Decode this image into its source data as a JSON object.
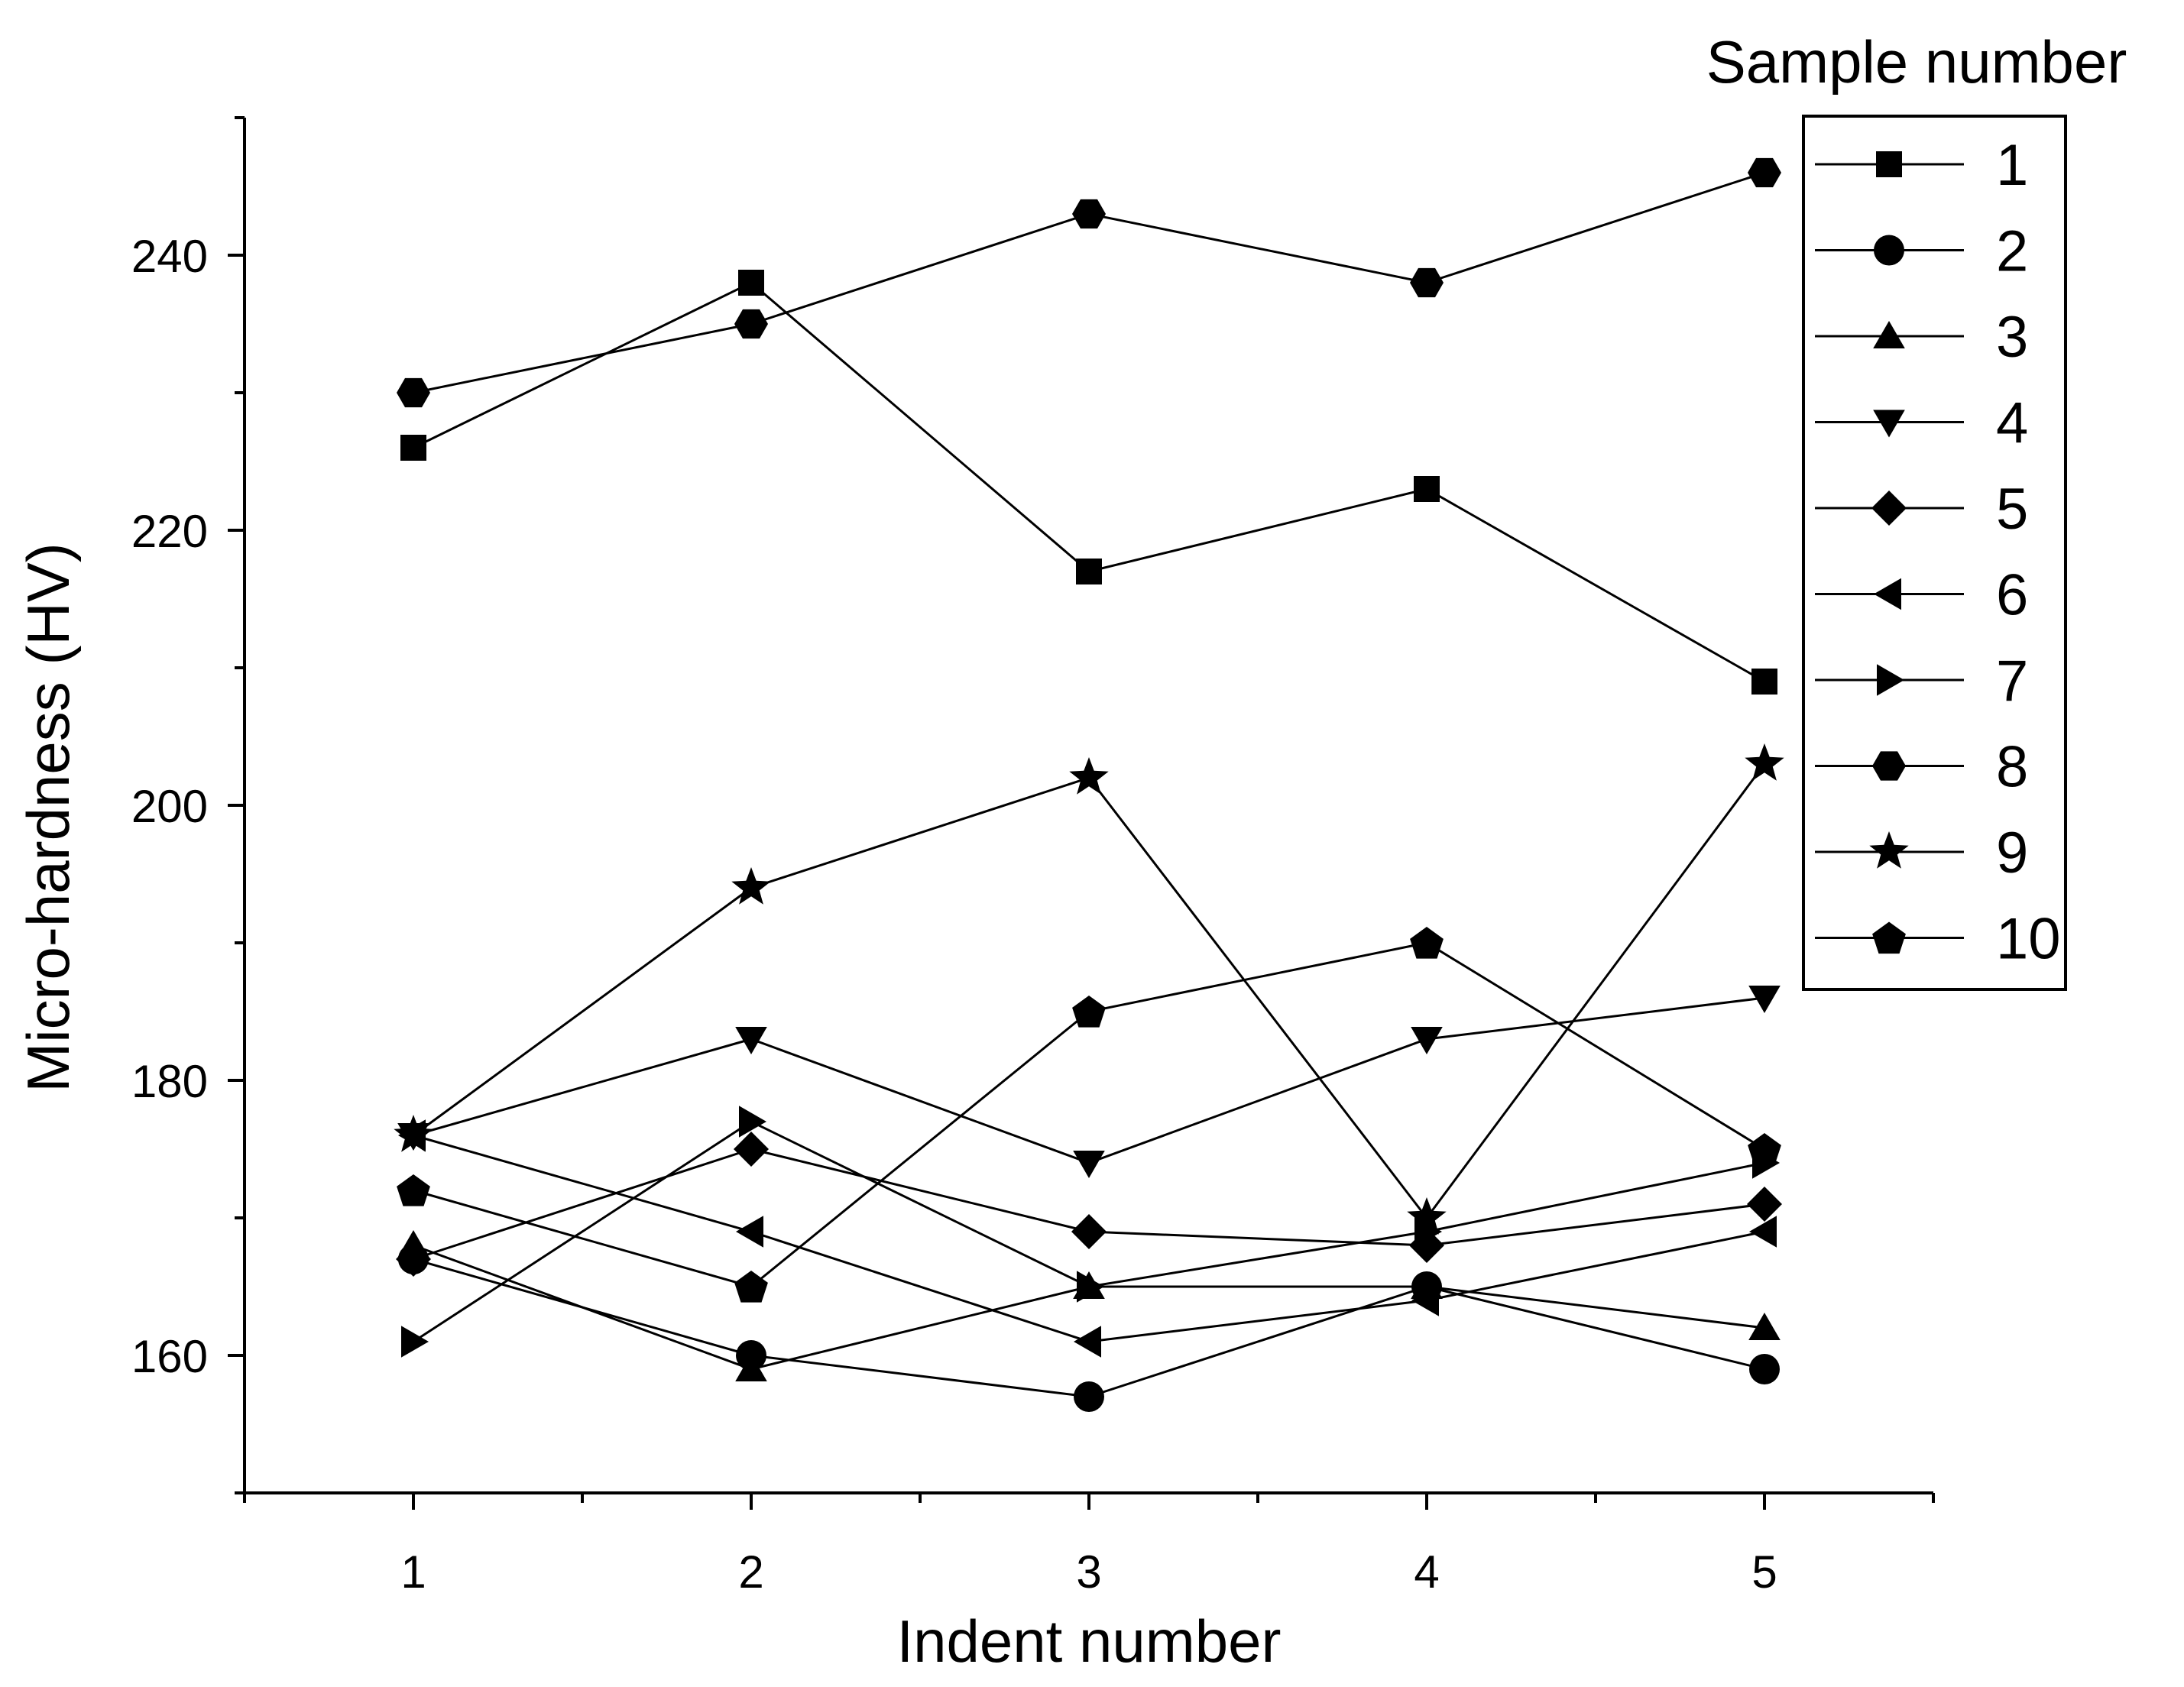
{
  "chart_data": {
    "type": "line",
    "xlabel": "Indent number",
    "ylabel": "Micro-hardness (HV)",
    "x": [
      1,
      2,
      3,
      4,
      5
    ],
    "xlim": [
      0.5,
      5.5
    ],
    "ylim": [
      150,
      250
    ],
    "xticks": [
      1,
      2,
      3,
      4,
      5
    ],
    "yticks": [
      160,
      180,
      200,
      220,
      240
    ],
    "grid": false,
    "legend": {
      "title": "Sample number",
      "position": "right"
    },
    "series": [
      {
        "name": "1",
        "marker": "square",
        "values": [
          226,
          238,
          217,
          223,
          209
        ]
      },
      {
        "name": "2",
        "marker": "circle",
        "values": [
          167,
          160,
          157,
          165,
          159
        ]
      },
      {
        "name": "3",
        "marker": "triangle-up",
        "values": [
          168,
          159,
          165,
          165,
          162
        ]
      },
      {
        "name": "4",
        "marker": "triangle-down",
        "values": [
          176,
          183,
          174,
          183,
          186
        ]
      },
      {
        "name": "5",
        "marker": "diamond",
        "values": [
          167,
          175,
          169,
          168,
          171
        ]
      },
      {
        "name": "6",
        "marker": "triangle-left",
        "values": [
          176,
          169,
          161,
          164,
          169
        ]
      },
      {
        "name": "7",
        "marker": "triangle-right",
        "values": [
          161,
          177,
          165,
          169,
          174
        ]
      },
      {
        "name": "8",
        "marker": "hexagon",
        "values": [
          230,
          235,
          243,
          238,
          246
        ]
      },
      {
        "name": "9",
        "marker": "star",
        "values": [
          176,
          194,
          202,
          170,
          203
        ]
      },
      {
        "name": "10",
        "marker": "pentagon",
        "values": [
          172,
          165,
          185,
          190,
          175
        ]
      }
    ]
  }
}
